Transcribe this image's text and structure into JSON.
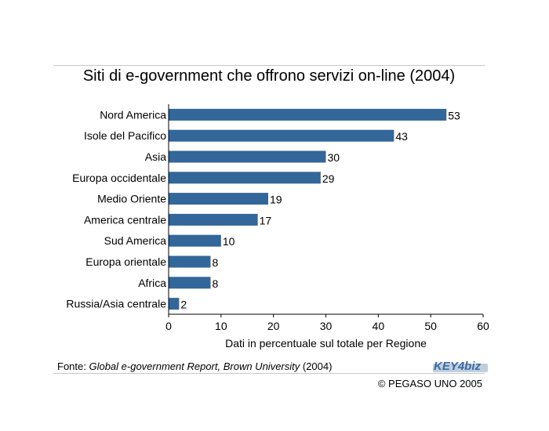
{
  "chart_data": {
    "type": "bar",
    "orientation": "horizontal",
    "title": "Siti di e-government che offrono servizi on-line (2004)",
    "xlabel": "Dati in percentuale sul totale per Regione",
    "ylabel": "",
    "categories": [
      "Nord America",
      "Isole del Pacifico",
      "Asia",
      "Europa occidentale",
      "Medio Oriente",
      "America centrale",
      "Sud America",
      "Europa orientale",
      "Africa",
      "Russia/Asia centrale"
    ],
    "values": [
      53,
      43,
      30,
      29,
      19,
      17,
      10,
      8,
      8,
      2
    ],
    "xlim": [
      0,
      60
    ],
    "xticks": [
      0,
      10,
      20,
      30,
      40,
      50,
      60
    ],
    "grid": false,
    "data_labels": true,
    "bar_color": "#336699"
  },
  "footer": {
    "source_prefix": "Fonte: ",
    "source_title": "Global e-government Report, Brown University",
    "source_suffix": " (2004)",
    "copyright": "© PEGASO UNO 2005",
    "logo_text": "KEY4biz"
  }
}
